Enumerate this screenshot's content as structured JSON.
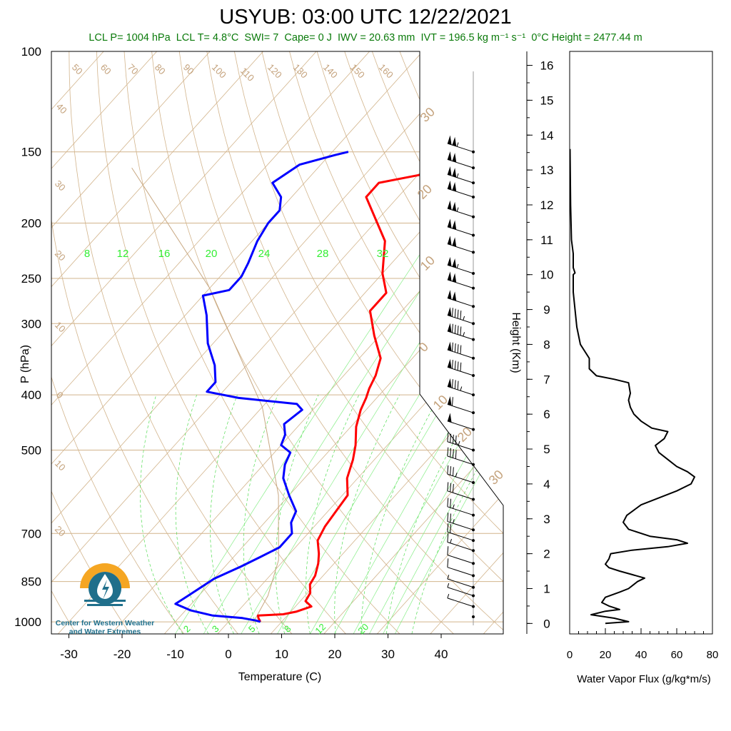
{
  "title": "USYUB: 03:00 UTC 12/22/2021",
  "subtitle": {
    "lcl_p": "LCL P= 1004 hPa",
    "lcl_t": "LCL T= 4.8°C",
    "swi": "SWI= 7",
    "cape": "Cape= 0 J",
    "iwv": "IWV = 20.63 mm",
    "ivt": "IVT = 196.5 kg m⁻¹ s⁻¹",
    "zero_c": "0°C Height = 2477.44 m"
  },
  "logo": {
    "text_line1": "Center for Western Weather",
    "text_line2": "and Water Extremes"
  },
  "chart_data": [
    {
      "type": "line",
      "subtype": "skew-t",
      "xlabel": "Temperature (C)",
      "ylabel": "P (hPa)",
      "xticks": [
        -30,
        -20,
        -10,
        0,
        10,
        20,
        30,
        40
      ],
      "xlim": [
        -34,
        52
      ],
      "yticks": [
        100,
        150,
        200,
        250,
        300,
        400,
        500,
        700,
        850,
        1000
      ],
      "ylim": [
        1050,
        100
      ],
      "yscale": "log",
      "dry_adiabat_labels": [
        "50",
        "60",
        "70",
        "80",
        "90",
        "100",
        "110",
        "120",
        "130",
        "140",
        "150",
        "160",
        "40",
        "30",
        "20",
        "10",
        "0",
        "10",
        "20"
      ],
      "isotherm_labels": [
        "30",
        "20",
        "10",
        "0",
        "10",
        "20",
        "30"
      ],
      "mixing_ratio_labels_top": [
        "8",
        "12",
        "16",
        "20",
        "24",
        "28",
        "32"
      ],
      "mixing_ratio_labels_bottom": [
        "2",
        "3",
        "5",
        "8",
        "12",
        "20"
      ],
      "colors": {
        "temperature": "#ff0000",
        "dewpoint": "#0000ff",
        "grid": "#d2b48c",
        "mixing": "#00cc00"
      },
      "series": [
        {
          "name": "Temperature",
          "points": [
            [
              6,
              1000
            ],
            [
              5,
              985
            ],
            [
              4.5,
              975
            ],
            [
              9,
              970
            ],
            [
              11,
              960
            ],
            [
              13,
              940
            ],
            [
              11,
              920
            ],
            [
              10.5,
              890
            ],
            [
              9,
              860
            ],
            [
              8.5,
              830
            ],
            [
              7,
              790
            ],
            [
              5.5,
              760
            ],
            [
              3,
              720
            ],
            [
              2,
              680
            ],
            [
              1.5,
              640
            ],
            [
              1,
              600
            ],
            [
              -2,
              560
            ],
            [
              -4,
              520
            ],
            [
              -6,
              490
            ],
            [
              -9,
              455
            ],
            [
              -11,
              425
            ],
            [
              -12,
              405
            ],
            [
              -13,
              390
            ],
            [
              -14,
              370
            ],
            [
              -16,
              345
            ],
            [
              -21,
              315
            ],
            [
              -26,
              285
            ],
            [
              -26,
              265
            ],
            [
              -30,
              245
            ],
            [
              -35,
              215
            ],
            [
              -46,
              180
            ],
            [
              -46,
              170
            ],
            [
              -34,
              160
            ],
            [
              -29,
              150
            ]
          ]
        },
        {
          "name": "Dewpoint",
          "points": [
            [
              6,
              1000
            ],
            [
              5,
              995
            ],
            [
              2,
              985
            ],
            [
              -4,
              975
            ],
            [
              -9,
              955
            ],
            [
              -13,
              930
            ],
            [
              -12,
              900
            ],
            [
              -11,
              870
            ],
            [
              -10,
              840
            ],
            [
              -7,
              800
            ],
            [
              -5,
              770
            ],
            [
              -3,
              740
            ],
            [
              -3,
              700
            ],
            [
              -5,
              670
            ],
            [
              -6,
              640
            ],
            [
              -10,
              600
            ],
            [
              -14,
              560
            ],
            [
              -16,
              530
            ],
            [
              -17,
              505
            ],
            [
              -20,
              490
            ],
            [
              -21,
              470
            ],
            [
              -23,
              450
            ],
            [
              -22,
              425
            ],
            [
              -24,
              415
            ],
            [
              -36,
              405
            ],
            [
              -43,
              395
            ],
            [
              -43,
              380
            ],
            [
              -46,
              355
            ],
            [
              -51,
              325
            ],
            [
              -56,
              290
            ],
            [
              -60,
              268
            ],
            [
              -56,
              262
            ],
            [
              -56,
              248
            ],
            [
              -57,
              235
            ],
            [
              -59,
              215
            ],
            [
              -60,
              200
            ],
            [
              -60,
              190
            ],
            [
              -62,
              180
            ],
            [
              -66,
              170
            ],
            [
              -64,
              158
            ],
            [
              -59,
              152
            ],
            [
              -57,
              150
            ]
          ]
        }
      ],
      "parcel": {
        "name": "Parcel",
        "color": "#c8a882"
      }
    },
    {
      "type": "line",
      "xlabel": "Water Vapor Flux (g/kg*m/s)",
      "ylabel": "Height (Km)",
      "xticks": [
        0,
        20,
        40,
        60,
        80
      ],
      "xlim": [
        0,
        80
      ],
      "yticks": [
        0,
        1,
        2,
        3,
        4,
        5,
        6,
        7,
        8,
        9,
        10,
        11,
        12,
        13,
        14,
        15,
        16
      ],
      "ylim": [
        -0.3,
        16.4
      ],
      "series": [
        {
          "name": "Water Vapor Flux",
          "points": [
            [
              20,
              0
            ],
            [
              33,
              0.05
            ],
            [
              25,
              0.15
            ],
            [
              12,
              0.25
            ],
            [
              20,
              0.35
            ],
            [
              28,
              0.4
            ],
            [
              22,
              0.5
            ],
            [
              18,
              0.6
            ],
            [
              20,
              0.75
            ],
            [
              28,
              0.9
            ],
            [
              33,
              1.0
            ],
            [
              38,
              1.2
            ],
            [
              42,
              1.3
            ],
            [
              35,
              1.4
            ],
            [
              28,
              1.5
            ],
            [
              22,
              1.6
            ],
            [
              20,
              1.7
            ],
            [
              22,
              1.85
            ],
            [
              23,
              2.0
            ],
            [
              35,
              2.1
            ],
            [
              55,
              2.2
            ],
            [
              66,
              2.3
            ],
            [
              60,
              2.4
            ],
            [
              45,
              2.5
            ],
            [
              33,
              2.7
            ],
            [
              30,
              2.9
            ],
            [
              32,
              3.1
            ],
            [
              40,
              3.4
            ],
            [
              50,
              3.6
            ],
            [
              60,
              3.8
            ],
            [
              68,
              4.0
            ],
            [
              70,
              4.2
            ],
            [
              66,
              4.35
            ],
            [
              60,
              4.5
            ],
            [
              55,
              4.7
            ],
            [
              50,
              4.9
            ],
            [
              48,
              5.1
            ],
            [
              53,
              5.3
            ],
            [
              55,
              5.5
            ],
            [
              46,
              5.6
            ],
            [
              40,
              5.8
            ],
            [
              36,
              6.0
            ],
            [
              34,
              6.2
            ],
            [
              33,
              6.4
            ],
            [
              34,
              6.6
            ],
            [
              33,
              6.9
            ],
            [
              25,
              7.0
            ],
            [
              15,
              7.1
            ],
            [
              11,
              7.3
            ],
            [
              11,
              7.6
            ],
            [
              6,
              8.0
            ],
            [
              4,
              8.5
            ],
            [
              3,
              9.0
            ],
            [
              2,
              9.5
            ],
            [
              2,
              10.0
            ],
            [
              3,
              10.05
            ],
            [
              2,
              10.2
            ],
            [
              2,
              10.6
            ],
            [
              1,
              11.0
            ],
            [
              0.5,
              12.0
            ],
            [
              0.3,
              13.0
            ],
            [
              0.2,
              13.6
            ]
          ]
        }
      ]
    },
    {
      "type": "scatter",
      "subtype": "wind-barbs",
      "title": "",
      "unit": "kt",
      "barbs": [
        [
          150,
          105
        ],
        [
          160,
          100
        ],
        [
          170,
          105
        ],
        [
          180,
          100
        ],
        [
          195,
          105
        ],
        [
          210,
          100
        ],
        [
          225,
          100
        ],
        [
          245,
          105
        ],
        [
          260,
          100
        ],
        [
          280,
          100
        ],
        [
          300,
          95
        ],
        [
          320,
          95
        ],
        [
          345,
          90
        ],
        [
          370,
          90
        ],
        [
          400,
          85
        ],
        [
          430,
          60
        ],
        [
          460,
          50
        ],
        [
          500,
          45
        ],
        [
          530,
          40
        ],
        [
          570,
          35
        ],
        [
          610,
          30
        ],
        [
          650,
          25
        ],
        [
          690,
          25
        ],
        [
          720,
          20
        ],
        [
          750,
          15
        ],
        [
          790,
          10
        ],
        [
          830,
          10
        ],
        [
          870,
          5
        ],
        [
          900,
          5
        ],
        [
          940,
          5
        ],
        [
          980,
          0
        ]
      ]
    }
  ]
}
